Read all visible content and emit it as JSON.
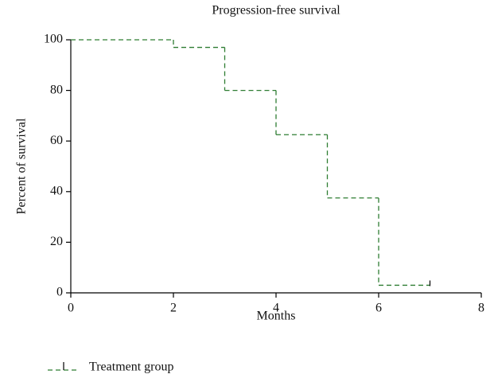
{
  "chart_data": {
    "type": "step",
    "title": "Progression-free survival",
    "x_label": "Months",
    "y_label": "Percent of survival",
    "series": [
      {
        "name": "Treatment group",
        "color": "#2e7d32",
        "x": [
          0,
          2,
          3,
          4,
          5,
          6,
          7
        ],
        "values": [
          100,
          97,
          80,
          62.5,
          37.5,
          3,
          3
        ]
      }
    ],
    "xlim": [
      0,
      8
    ],
    "xticks": [
      0,
      2,
      4,
      6,
      8
    ],
    "ylim": [
      0,
      100
    ],
    "yticks": [
      0,
      20,
      40,
      60,
      80,
      100
    ],
    "grid": false,
    "legend": "bottom-left"
  }
}
